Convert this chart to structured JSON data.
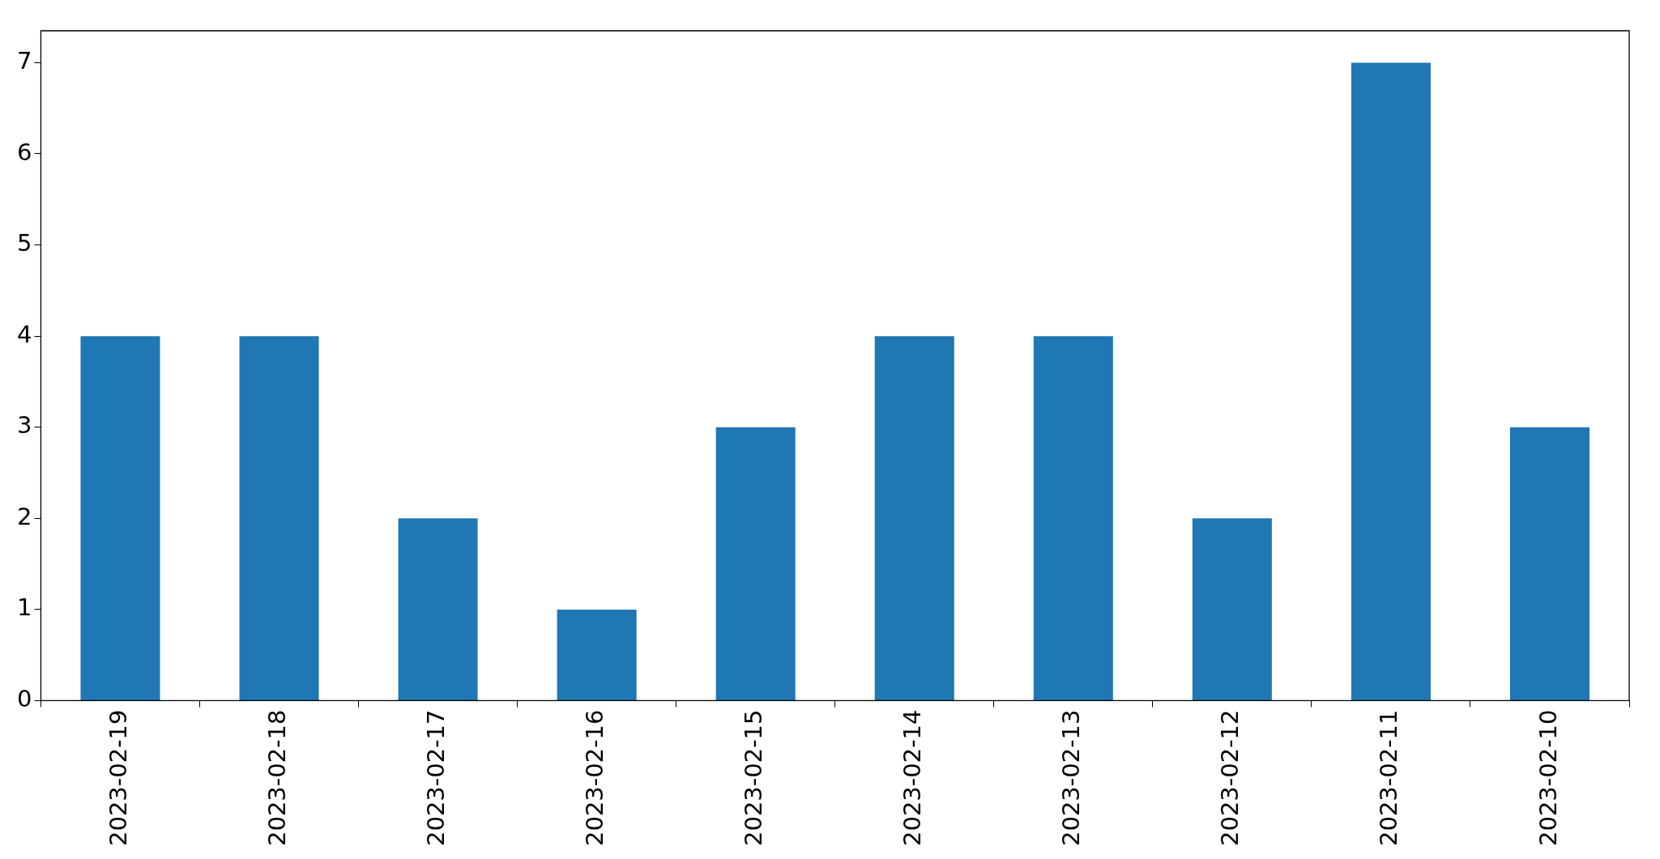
{
  "chart_data": {
    "type": "bar",
    "categories": [
      "2023-02-19",
      "2023-02-18",
      "2023-02-17",
      "2023-02-16",
      "2023-02-15",
      "2023-02-14",
      "2023-02-13",
      "2023-02-12",
      "2023-02-11",
      "2023-02-10"
    ],
    "values": [
      4,
      4,
      2,
      1,
      3,
      4,
      4,
      2,
      7,
      3
    ],
    "color": "#1f77b4",
    "ylim": [
      0,
      7.35
    ],
    "yticks": [
      0,
      1,
      2,
      3,
      4,
      5,
      6,
      7
    ],
    "grid": false,
    "legend": false
  }
}
